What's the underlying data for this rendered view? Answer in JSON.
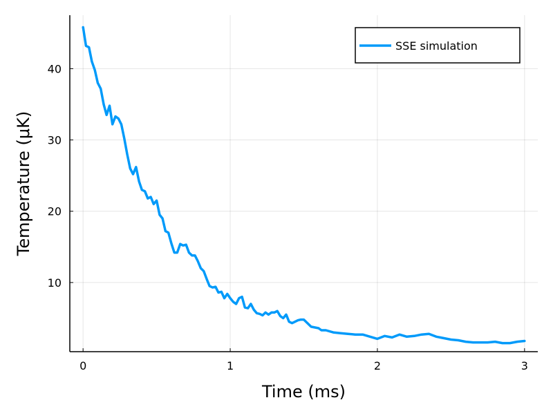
{
  "chart_data": {
    "type": "line",
    "title": "",
    "xlabel": "Time (ms)",
    "ylabel": "Temperature (μK)",
    "xlim": [
      -0.09,
      3.09
    ],
    "ylim": [
      0.3,
      47.5
    ],
    "xticks": [
      0,
      1,
      2,
      3
    ],
    "yticks": [
      10,
      20,
      30,
      40
    ],
    "grid": true,
    "legend_position": "top-right",
    "series": [
      {
        "name": "SSE simulation",
        "color": "#009AFA",
        "x": [
          0,
          0.02,
          0.04,
          0.06,
          0.08,
          0.1,
          0.12,
          0.14,
          0.16,
          0.18,
          0.2,
          0.22,
          0.24,
          0.26,
          0.28,
          0.3,
          0.32,
          0.34,
          0.36,
          0.38,
          0.4,
          0.42,
          0.44,
          0.46,
          0.48,
          0.5,
          0.52,
          0.54,
          0.56,
          0.58,
          0.6,
          0.62,
          0.64,
          0.66,
          0.68,
          0.7,
          0.72,
          0.74,
          0.76,
          0.78,
          0.8,
          0.82,
          0.84,
          0.86,
          0.88,
          0.9,
          0.92,
          0.94,
          0.96,
          0.98,
          1.0,
          1.02,
          1.04,
          1.06,
          1.08,
          1.1,
          1.12,
          1.14,
          1.16,
          1.18,
          1.2,
          1.22,
          1.24,
          1.26,
          1.28,
          1.3,
          1.32,
          1.34,
          1.36,
          1.38,
          1.4,
          1.42,
          1.44,
          1.46,
          1.48,
          1.5,
          1.55,
          1.6,
          1.62,
          1.65,
          1.7,
          1.75,
          1.8,
          1.85,
          1.9,
          1.95,
          2.0,
          2.05,
          2.1,
          2.15,
          2.2,
          2.25,
          2.3,
          2.35,
          2.4,
          2.45,
          2.5,
          2.55,
          2.6,
          2.65,
          2.7,
          2.75,
          2.8,
          2.85,
          2.9,
          2.95,
          3.0
        ],
        "values": [
          45.8,
          43.2,
          43.0,
          41.0,
          39.8,
          38.0,
          37.2,
          35.0,
          33.5,
          34.8,
          32.2,
          33.3,
          33.0,
          32.2,
          30.2,
          28.0,
          26.0,
          25.2,
          26.2,
          24.2,
          23.0,
          22.8,
          21.8,
          22.0,
          21.0,
          21.5,
          19.5,
          19.0,
          17.2,
          17.0,
          15.5,
          14.2,
          14.2,
          15.4,
          15.2,
          15.3,
          14.2,
          13.8,
          13.8,
          13.0,
          12.0,
          11.6,
          10.5,
          9.5,
          9.3,
          9.4,
          8.6,
          8.7,
          7.8,
          8.4,
          7.8,
          7.3,
          7.0,
          7.8,
          8.0,
          6.5,
          6.4,
          7.0,
          6.2,
          5.7,
          5.6,
          5.4,
          5.8,
          5.5,
          5.8,
          5.8,
          6.0,
          5.3,
          5.0,
          5.5,
          4.5,
          4.3,
          4.5,
          4.7,
          4.8,
          4.8,
          3.8,
          3.6,
          3.3,
          3.3,
          3.0,
          2.9,
          2.8,
          2.7,
          2.7,
          2.4,
          2.1,
          2.5,
          2.3,
          2.7,
          2.4,
          2.5,
          2.7,
          2.8,
          2.4,
          2.2,
          2.0,
          1.9,
          1.7,
          1.6,
          1.6,
          1.6,
          1.7,
          1.5,
          1.5,
          1.7,
          1.8
        ]
      }
    ]
  }
}
